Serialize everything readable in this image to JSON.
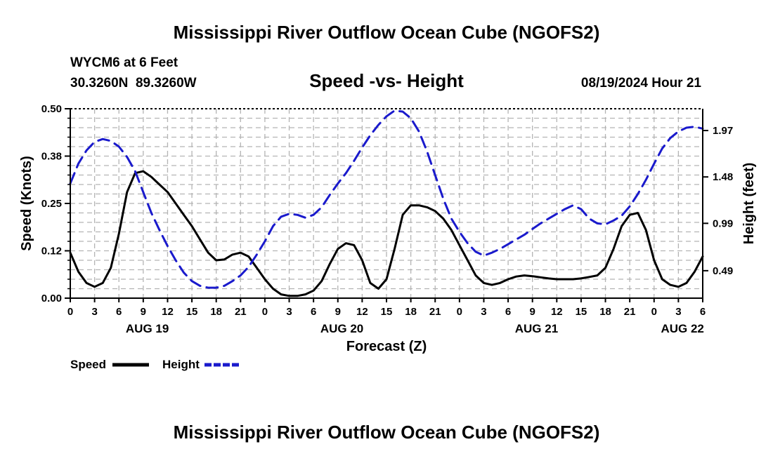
{
  "page_title": "Mississippi River Outflow Ocean Cube (NGOFS2)",
  "footer_title": "Mississippi River Outflow Ocean Cube (NGOFS2)",
  "station_line": "WYCM6 at 6 Feet",
  "coords_line": "30.3260N  89.3260W",
  "datetime_line": "08/19/2024 Hour 21",
  "chart_data": {
    "type": "line",
    "title": "Speed -vs- Height",
    "xlabel": "Forecast (Z)",
    "ylabel": "Speed (Knots)",
    "y2label": "Height (feet)",
    "ylim": [
      0,
      0.5
    ],
    "y2lim": [
      0.2,
      2.2
    ],
    "xlim": [
      0,
      78
    ],
    "grid": true,
    "legend_position": "bottom-left",
    "y_ticks": [
      {
        "value": 0.0,
        "label": "0.00"
      },
      {
        "value": 0.125,
        "label": "0.12"
      },
      {
        "value": 0.25,
        "label": "0.25"
      },
      {
        "value": 0.375,
        "label": "0.38"
      },
      {
        "value": 0.5,
        "label": "0.50"
      }
    ],
    "y2_ticks": [
      {
        "value": 0.49,
        "label": "0.49"
      },
      {
        "value": 0.99,
        "label": "0.99"
      },
      {
        "value": 1.48,
        "label": "1.48"
      },
      {
        "value": 1.97,
        "label": "1.97"
      }
    ],
    "x_ticks": [
      {
        "value": 0,
        "label": "0"
      },
      {
        "value": 3,
        "label": "3"
      },
      {
        "value": 6,
        "label": "6"
      },
      {
        "value": 9,
        "label": "9"
      },
      {
        "value": 12,
        "label": "12"
      },
      {
        "value": 15,
        "label": "15"
      },
      {
        "value": 18,
        "label": "18"
      },
      {
        "value": 21,
        "label": "21"
      },
      {
        "value": 24,
        "label": "0"
      },
      {
        "value": 27,
        "label": "3"
      },
      {
        "value": 30,
        "label": "6"
      },
      {
        "value": 33,
        "label": "9"
      },
      {
        "value": 36,
        "label": "12"
      },
      {
        "value": 39,
        "label": "15"
      },
      {
        "value": 42,
        "label": "18"
      },
      {
        "value": 45,
        "label": "21"
      },
      {
        "value": 48,
        "label": "0"
      },
      {
        "value": 51,
        "label": "3"
      },
      {
        "value": 54,
        "label": "6"
      },
      {
        "value": 57,
        "label": "9"
      },
      {
        "value": 60,
        "label": "12"
      },
      {
        "value": 63,
        "label": "15"
      },
      {
        "value": 66,
        "label": "18"
      },
      {
        "value": 69,
        "label": "21"
      },
      {
        "value": 72,
        "label": "0"
      },
      {
        "value": 75,
        "label": "3"
      },
      {
        "value": 78,
        "label": "6"
      }
    ],
    "day_labels": [
      {
        "value": 9.5,
        "label": "AUG 19"
      },
      {
        "value": 33.5,
        "label": "AUG 20"
      },
      {
        "value": 57.5,
        "label": "AUG 21"
      },
      {
        "value": 75.5,
        "label": "AUG 22"
      }
    ],
    "series": [
      {
        "name": "Speed",
        "axis": "left",
        "color": "#000000",
        "style": "solid",
        "points": [
          [
            0,
            0.12
          ],
          [
            1,
            0.07
          ],
          [
            2,
            0.04
          ],
          [
            3,
            0.03
          ],
          [
            4,
            0.04
          ],
          [
            5,
            0.08
          ],
          [
            6,
            0.17
          ],
          [
            7,
            0.28
          ],
          [
            8,
            0.33
          ],
          [
            9,
            0.335
          ],
          [
            10,
            0.32
          ],
          [
            11,
            0.3
          ],
          [
            12,
            0.28
          ],
          [
            13,
            0.25
          ],
          [
            14,
            0.22
          ],
          [
            15,
            0.19
          ],
          [
            16,
            0.155
          ],
          [
            17,
            0.12
          ],
          [
            18,
            0.1
          ],
          [
            19,
            0.102
          ],
          [
            20,
            0.115
          ],
          [
            21,
            0.12
          ],
          [
            22,
            0.11
          ],
          [
            23,
            0.08
          ],
          [
            24,
            0.05
          ],
          [
            25,
            0.025
          ],
          [
            26,
            0.01
          ],
          [
            27,
            0.006
          ],
          [
            28,
            0.006
          ],
          [
            29,
            0.01
          ],
          [
            30,
            0.02
          ],
          [
            31,
            0.045
          ],
          [
            32,
            0.09
          ],
          [
            33,
            0.13
          ],
          [
            34,
            0.145
          ],
          [
            35,
            0.14
          ],
          [
            36,
            0.1
          ],
          [
            37,
            0.04
          ],
          [
            38,
            0.025
          ],
          [
            39,
            0.05
          ],
          [
            40,
            0.13
          ],
          [
            41,
            0.22
          ],
          [
            42,
            0.245
          ],
          [
            43,
            0.245
          ],
          [
            44,
            0.24
          ],
          [
            45,
            0.23
          ],
          [
            46,
            0.21
          ],
          [
            47,
            0.18
          ],
          [
            48,
            0.14
          ],
          [
            49,
            0.1
          ],
          [
            50,
            0.06
          ],
          [
            51,
            0.04
          ],
          [
            52,
            0.035
          ],
          [
            53,
            0.04
          ],
          [
            54,
            0.05
          ],
          [
            55,
            0.057
          ],
          [
            56,
            0.06
          ],
          [
            57,
            0.058
          ],
          [
            58,
            0.055
          ],
          [
            59,
            0.052
          ],
          [
            60,
            0.05
          ],
          [
            61,
            0.05
          ],
          [
            62,
            0.05
          ],
          [
            63,
            0.052
          ],
          [
            64,
            0.056
          ],
          [
            65,
            0.06
          ],
          [
            66,
            0.08
          ],
          [
            67,
            0.13
          ],
          [
            68,
            0.19
          ],
          [
            69,
            0.22
          ],
          [
            70,
            0.225
          ],
          [
            71,
            0.18
          ],
          [
            72,
            0.1
          ],
          [
            73,
            0.05
          ],
          [
            74,
            0.035
          ],
          [
            75,
            0.03
          ],
          [
            76,
            0.04
          ],
          [
            77,
            0.07
          ],
          [
            78,
            0.11
          ]
        ]
      },
      {
        "name": "Height",
        "axis": "right",
        "color": "#1a1acc",
        "style": "dashed",
        "points": [
          [
            0,
            1.41
          ],
          [
            1,
            1.62
          ],
          [
            2,
            1.76
          ],
          [
            3,
            1.85
          ],
          [
            4,
            1.88
          ],
          [
            5,
            1.86
          ],
          [
            6,
            1.8
          ],
          [
            7,
            1.69
          ],
          [
            8,
            1.54
          ],
          [
            9,
            1.32
          ],
          [
            10,
            1.1
          ],
          [
            11,
            0.92
          ],
          [
            12,
            0.75
          ],
          [
            13,
            0.6
          ],
          [
            14,
            0.47
          ],
          [
            15,
            0.38
          ],
          [
            16,
            0.33
          ],
          [
            17,
            0.31
          ],
          [
            18,
            0.31
          ],
          [
            19,
            0.33
          ],
          [
            20,
            0.38
          ],
          [
            21,
            0.44
          ],
          [
            22,
            0.53
          ],
          [
            23,
            0.66
          ],
          [
            24,
            0.8
          ],
          [
            25,
            0.96
          ],
          [
            26,
            1.06
          ],
          [
            27,
            1.09
          ],
          [
            28,
            1.08
          ],
          [
            29,
            1.05
          ],
          [
            30,
            1.08
          ],
          [
            31,
            1.16
          ],
          [
            32,
            1.29
          ],
          [
            33,
            1.41
          ],
          [
            34,
            1.52
          ],
          [
            35,
            1.65
          ],
          [
            36,
            1.79
          ],
          [
            37,
            1.92
          ],
          [
            38,
            2.03
          ],
          [
            39,
            2.12
          ],
          [
            40,
            2.18
          ],
          [
            41,
            2.17
          ],
          [
            42,
            2.1
          ],
          [
            43,
            1.96
          ],
          [
            44,
            1.75
          ],
          [
            45,
            1.5
          ],
          [
            46,
            1.25
          ],
          [
            47,
            1.04
          ],
          [
            48,
            0.9
          ],
          [
            49,
            0.78
          ],
          [
            50,
            0.69
          ],
          [
            51,
            0.65
          ],
          [
            52,
            0.68
          ],
          [
            53,
            0.72
          ],
          [
            54,
            0.77
          ],
          [
            55,
            0.82
          ],
          [
            56,
            0.87
          ],
          [
            57,
            0.93
          ],
          [
            58,
            0.99
          ],
          [
            59,
            1.04
          ],
          [
            60,
            1.09
          ],
          [
            61,
            1.14
          ],
          [
            62,
            1.18
          ],
          [
            63,
            1.14
          ],
          [
            64,
            1.04
          ],
          [
            65,
            0.99
          ],
          [
            66,
            0.98
          ],
          [
            67,
            1.02
          ],
          [
            68,
            1.07
          ],
          [
            69,
            1.17
          ],
          [
            70,
            1.3
          ],
          [
            71,
            1.45
          ],
          [
            72,
            1.62
          ],
          [
            73,
            1.78
          ],
          [
            74,
            1.89
          ],
          [
            75,
            1.96
          ],
          [
            76,
            2.0
          ],
          [
            77,
            2.01
          ],
          [
            78,
            1.99
          ]
        ]
      }
    ]
  }
}
